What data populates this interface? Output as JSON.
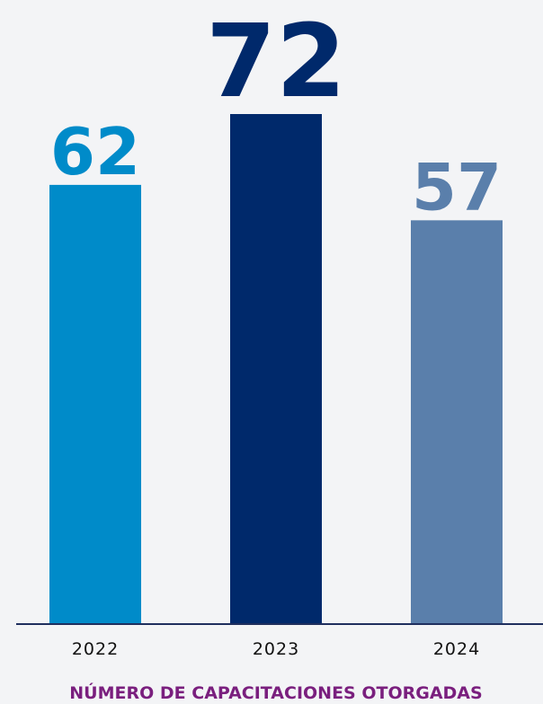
{
  "chart_data": {
    "type": "bar",
    "title": "NÚMERO DE CAPACITACIONES OTORGADAS",
    "categories": [
      "2022",
      "2023",
      "2024"
    ],
    "values": [
      62,
      72,
      57
    ],
    "colors": [
      "#008bc9",
      "#00296b",
      "#5a7fab"
    ],
    "axis_color": "#1f2f5e"
  }
}
